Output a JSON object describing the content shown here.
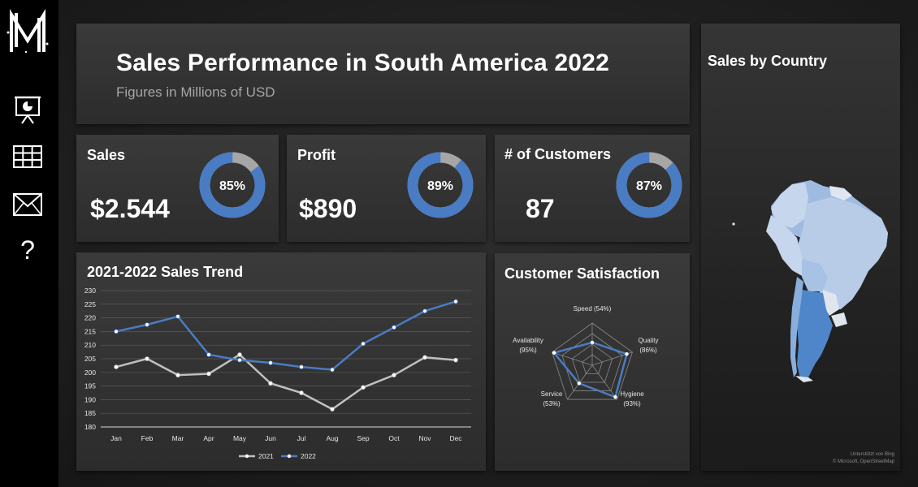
{
  "header": {
    "title": "Sales Performance in South America 2022",
    "subtitle": "Figures in Millions of USD"
  },
  "sidebar": {
    "items": [
      {
        "icon": "presentation-icon"
      },
      {
        "icon": "table-icon"
      },
      {
        "icon": "mail-icon"
      },
      {
        "icon": "help-icon",
        "glyph": "?"
      }
    ]
  },
  "kpis": [
    {
      "label": "Sales",
      "value": "$2.544",
      "percent": 85,
      "percent_label": "85%"
    },
    {
      "label": "Profit",
      "value": "$890",
      "percent": 89,
      "percent_label": "89%"
    },
    {
      "label": "# of Customers",
      "value": "87",
      "percent": 87,
      "percent_label": "87%"
    }
  ],
  "colors": {
    "accent": "#4a7cc3",
    "muted": "#a6a6a6",
    "series2021": "#bfbfbf",
    "series2022": "#4a7cc3"
  },
  "trend": {
    "title": "2021-2022 Sales Trend"
  },
  "satisfaction": {
    "title": "Customer Satisfaction"
  },
  "map": {
    "title": "Sales by Country",
    "credit_line1": "Unterstützt von Bing",
    "credit_line2": "© Microsoft, OpenStreetMap"
  },
  "chart_data": [
    {
      "type": "line",
      "title": "2021-2022 Sales Trend",
      "categories": [
        "Jan",
        "Feb",
        "Mar",
        "Apr",
        "May",
        "Jun",
        "Jul",
        "Aug",
        "Sep",
        "Oct",
        "Nov",
        "Dec"
      ],
      "ylim": [
        180,
        230
      ],
      "yticks": [
        180,
        185,
        190,
        195,
        200,
        205,
        210,
        215,
        220,
        225,
        230
      ],
      "grid": true,
      "legend": "bottom",
      "series": [
        {
          "name": "2021",
          "values": [
            202,
            205,
            199,
            199.5,
            206.5,
            196,
            192.5,
            186.5,
            194.5,
            199,
            205.5,
            204.5
          ]
        },
        {
          "name": "2022",
          "values": [
            215,
            217.5,
            220.5,
            206.5,
            204.5,
            203.5,
            202,
            201,
            210.5,
            216.5,
            222.5,
            226
          ]
        }
      ]
    },
    {
      "type": "radar",
      "title": "Customer Satisfaction",
      "axes": [
        {
          "label": "Speed",
          "pct_label": "(54%)",
          "value": 54
        },
        {
          "label": "Quality",
          "pct_label": "(86%)",
          "value": 86
        },
        {
          "label": "Hygiene",
          "pct_label": "(93%)",
          "value": 93
        },
        {
          "label": "Service",
          "pct_label": "(53%)",
          "value": 53
        },
        {
          "label": "Availability",
          "pct_label": "(95%)",
          "value": 95
        }
      ],
      "rmax": 100
    },
    {
      "type": "pie",
      "title": "Sales",
      "values": [
        85,
        15
      ]
    },
    {
      "type": "pie",
      "title": "Profit",
      "values": [
        89,
        11
      ]
    },
    {
      "type": "pie",
      "title": "# of Customers",
      "values": [
        87,
        13
      ]
    }
  ]
}
